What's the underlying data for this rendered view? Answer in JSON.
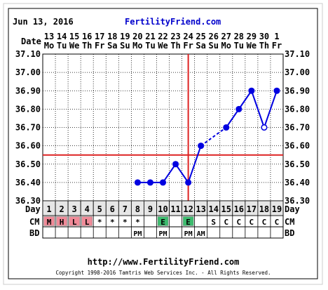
{
  "header": {
    "date": "Jun 13, 2016",
    "brand": "FertilityFriend.com"
  },
  "footer": {
    "url": "http://www.FertilityFriend.com",
    "copyright": "Copyright 1998-2016 Tamtris Web Services Inc. - All Rights Reserved."
  },
  "row_labels": {
    "date": "Date",
    "day": "Day",
    "cm": "CM",
    "bd": "BD"
  },
  "colors": {
    "line": "#0000e0",
    "grid": "#000000",
    "coverline": "#dd2222",
    "ovulation": "#dd2222",
    "menses": "#f08a98",
    "egg_white": "#3cbc6e",
    "brand": "#0000cc"
  },
  "chart_data": {
    "type": "line",
    "title": "",
    "xlabel": "Day",
    "ylabel": "",
    "ylim": [
      36.3,
      37.1
    ],
    "y_ticks": [
      "37.10",
      "37.00",
      "36.90",
      "36.80",
      "36.70",
      "36.60",
      "36.50",
      "36.40",
      "36.30"
    ],
    "grid": true,
    "dates": [
      "13",
      "14",
      "15",
      "16",
      "17",
      "18",
      "19",
      "20",
      "21",
      "22",
      "23",
      "24",
      "25",
      "26",
      "27",
      "28",
      "29",
      "30",
      "1"
    ],
    "weekdays": [
      "Mo",
      "Tu",
      "We",
      "Th",
      "Fr",
      "Sa",
      "Su",
      "Mo",
      "Tu",
      "We",
      "Th",
      "Fr",
      "Sa",
      "Su",
      "Mo",
      "Tu",
      "We",
      "Th",
      "Fr"
    ],
    "days": [
      "1",
      "2",
      "3",
      "4",
      "5",
      "6",
      "7",
      "8",
      "9",
      "10",
      "11",
      "12",
      "13",
      "14",
      "15",
      "16",
      "17",
      "18",
      "19"
    ],
    "temps": [
      null,
      null,
      null,
      null,
      null,
      null,
      null,
      36.4,
      36.4,
      36.4,
      36.5,
      36.4,
      36.6,
      null,
      36.7,
      36.8,
      36.9,
      36.7,
      36.9
    ],
    "open_point_days": [
      18
    ],
    "dashed_gap": [
      13,
      15
    ],
    "coverline": 36.55,
    "ovulation_day": 12,
    "cervical_mucus": [
      "M",
      "H",
      "L",
      "L",
      "*",
      "*",
      "*",
      "*",
      "",
      "E",
      "",
      "E",
      "",
      "S",
      "C",
      "C",
      "C",
      "C",
      "C"
    ],
    "bd": [
      "",
      "",
      "",
      "",
      "",
      "",
      "",
      "PM",
      "",
      "PM",
      "",
      "PM",
      "AM",
      "",
      "",
      "",
      "",
      "",
      ""
    ]
  }
}
